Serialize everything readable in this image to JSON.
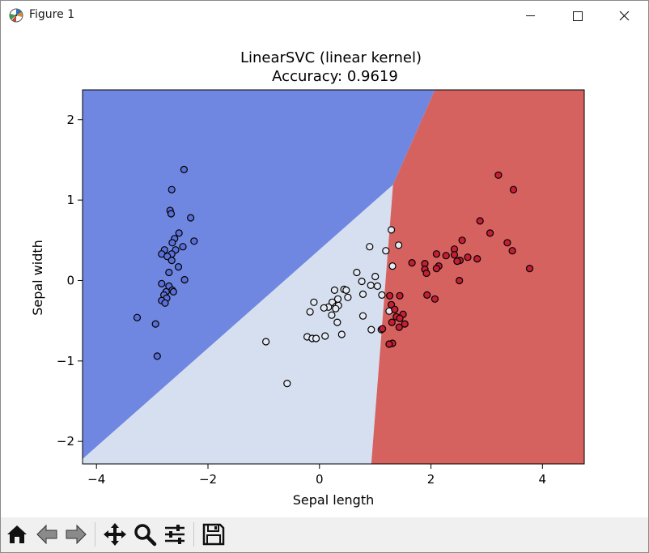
{
  "window": {
    "title": "Figure 1",
    "icons": [
      "matplotlib-icon",
      "minimize-icon",
      "maximize-icon",
      "close-icon"
    ]
  },
  "toolbar": {
    "buttons": [
      "home-icon",
      "back-arrow-icon",
      "forward-arrow-icon",
      "pan-icon",
      "zoom-icon",
      "configure-subplots-icon",
      "save-icon"
    ]
  },
  "colors": {
    "region_class0": "#6f87e0",
    "region_class1": "#d6dff0",
    "region_class2": "#d5625e",
    "point_class0": "#5b6fd6",
    "point_class1": "#e4e9f4",
    "point_class2": "#c61f35"
  },
  "chart_data": {
    "type": "scatter",
    "title": "LinearSVC (linear kernel)",
    "subtitle": "Accuracy: 0.9619",
    "xlabel": "Sepal length",
    "ylabel": "Sepal width",
    "xlim": [
      -4.25,
      4.75
    ],
    "ylim": [
      -2.28,
      2.37
    ],
    "xticks": [
      -4,
      -2,
      0,
      2,
      4
    ],
    "yticks": [
      -2,
      -1,
      0,
      1,
      2
    ],
    "xtick_labels": [
      "−4",
      "−2",
      "0",
      "2",
      "4"
    ],
    "ytick_labels": [
      "−2",
      "−1",
      "0",
      "1",
      "2"
    ],
    "grid": false,
    "decision_regions": {
      "triple_point": [
        1.32,
        1.19
      ],
      "boundary_0_1_end": [
        -4.25,
        -2.22
      ],
      "boundary_0_2_end": [
        2.07,
        2.37
      ],
      "boundary_1_2_end": [
        0.93,
        -2.28
      ]
    },
    "series": [
      {
        "class": 0,
        "points": [
          [
            -2.43,
            1.38
          ],
          [
            -2.65,
            1.13
          ],
          [
            -2.68,
            0.87
          ],
          [
            -2.31,
            0.78
          ],
          [
            -2.66,
            0.83
          ],
          [
            -2.52,
            0.59
          ],
          [
            -2.6,
            0.52
          ],
          [
            -2.64,
            0.47
          ],
          [
            -2.25,
            0.49
          ],
          [
            -2.45,
            0.42
          ],
          [
            -2.58,
            0.38
          ],
          [
            -2.78,
            0.38
          ],
          [
            -2.83,
            0.33
          ],
          [
            -2.65,
            0.33
          ],
          [
            -2.73,
            0.3
          ],
          [
            -2.65,
            0.25
          ],
          [
            -2.53,
            0.17
          ],
          [
            -2.7,
            0.1
          ],
          [
            -2.42,
            0.01
          ],
          [
            -2.83,
            -0.04
          ],
          [
            -2.7,
            -0.07
          ],
          [
            -2.64,
            -0.12
          ],
          [
            -2.75,
            -0.14
          ],
          [
            -2.62,
            -0.14
          ],
          [
            -2.79,
            -0.18
          ],
          [
            -2.74,
            -0.22
          ],
          [
            -2.83,
            -0.25
          ],
          [
            -2.77,
            -0.28
          ],
          [
            -3.27,
            -0.46
          ],
          [
            -2.94,
            -0.54
          ],
          [
            -2.91,
            -0.94
          ]
        ]
      },
      {
        "class": 1,
        "points": [
          [
            1.29,
            0.63
          ],
          [
            0.9,
            0.42
          ],
          [
            1.42,
            0.44
          ],
          [
            1.19,
            0.37
          ],
          [
            1.31,
            0.18
          ],
          [
            0.67,
            0.1
          ],
          [
            1.0,
            0.05
          ],
          [
            0.76,
            -0.01
          ],
          [
            0.92,
            -0.06
          ],
          [
            1.04,
            -0.07
          ],
          [
            0.44,
            -0.11
          ],
          [
            0.48,
            -0.12
          ],
          [
            0.27,
            -0.12
          ],
          [
            0.51,
            -0.21
          ],
          [
            0.78,
            -0.17
          ],
          [
            1.12,
            -0.18
          ],
          [
            0.33,
            -0.23
          ],
          [
            0.23,
            -0.27
          ],
          [
            -0.1,
            -0.27
          ],
          [
            0.3,
            -0.32
          ],
          [
            0.34,
            -0.31
          ],
          [
            0.16,
            -0.33
          ],
          [
            0.08,
            -0.34
          ],
          [
            0.29,
            -0.35
          ],
          [
            1.25,
            -0.38
          ],
          [
            -0.17,
            -0.39
          ],
          [
            0.78,
            -0.44
          ],
          [
            0.22,
            -0.43
          ],
          [
            0.32,
            -0.52
          ],
          [
            0.93,
            -0.61
          ],
          [
            1.11,
            -0.61
          ],
          [
            0.4,
            -0.67
          ],
          [
            0.1,
            -0.69
          ],
          [
            -0.22,
            -0.7
          ],
          [
            -0.13,
            -0.72
          ],
          [
            -0.06,
            -0.72
          ],
          [
            -0.96,
            -0.76
          ],
          [
            -0.58,
            -1.28
          ]
        ]
      },
      {
        "class": 2,
        "points": [
          [
            3.21,
            1.31
          ],
          [
            3.48,
            1.13
          ],
          [
            2.88,
            0.74
          ],
          [
            3.06,
            0.59
          ],
          [
            2.56,
            0.5
          ],
          [
            3.37,
            0.47
          ],
          [
            2.42,
            0.39
          ],
          [
            3.46,
            0.37
          ],
          [
            2.1,
            0.33
          ],
          [
            2.42,
            0.32
          ],
          [
            2.27,
            0.31
          ],
          [
            2.66,
            0.29
          ],
          [
            2.83,
            0.27
          ],
          [
            2.52,
            0.25
          ],
          [
            2.47,
            0.24
          ],
          [
            1.66,
            0.22
          ],
          [
            1.89,
            0.21
          ],
          [
            2.14,
            0.18
          ],
          [
            3.77,
            0.15
          ],
          [
            1.89,
            0.14
          ],
          [
            2.1,
            0.15
          ],
          [
            1.92,
            0.09
          ],
          [
            2.51,
            0.0
          ],
          [
            1.26,
            -0.19
          ],
          [
            1.44,
            -0.19
          ],
          [
            1.93,
            -0.18
          ],
          [
            2.07,
            -0.23
          ],
          [
            1.29,
            -0.3
          ],
          [
            1.35,
            -0.36
          ],
          [
            1.5,
            -0.42
          ],
          [
            1.38,
            -0.45
          ],
          [
            1.44,
            -0.47
          ],
          [
            1.3,
            -0.52
          ],
          [
            1.53,
            -0.54
          ],
          [
            1.43,
            -0.58
          ],
          [
            1.13,
            -0.6
          ],
          [
            1.31,
            -0.78
          ],
          [
            1.25,
            -0.79
          ]
        ]
      }
    ]
  }
}
